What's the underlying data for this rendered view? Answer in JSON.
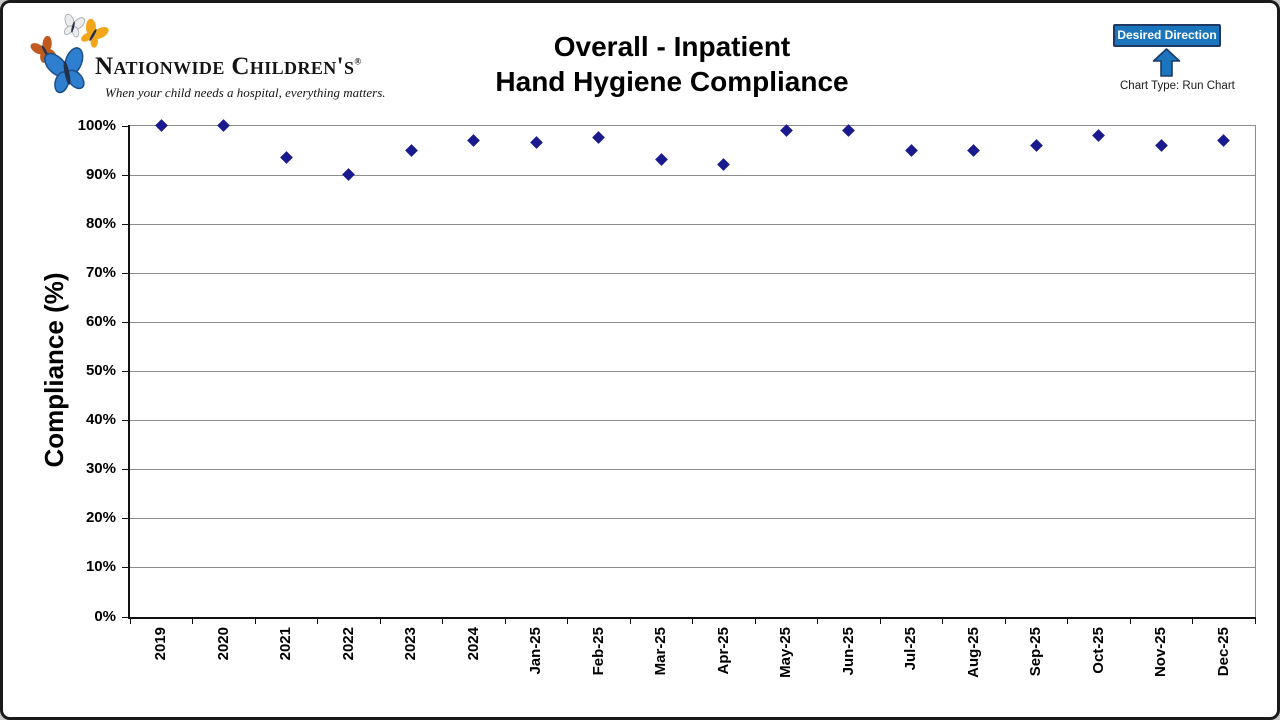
{
  "header": {
    "logo": {
      "name": "Nationwide Children's",
      "registered_mark": "®",
      "tagline": "When your child needs a hospital, everything matters.",
      "butterfly_colors": {
        "blue": "#2e7fd0",
        "blue_dark": "#1c4f86",
        "orange": "#c05a1e",
        "white": "#ededed",
        "white_edge": "#9aa4ad",
        "gold": "#f2a71b",
        "body": "#23324a"
      }
    },
    "title_line1": "Overall - Inpatient",
    "title_line2": "Hand Hygiene Compliance",
    "desired_direction": {
      "label": "Desired Direction",
      "badge_fill": "#1b75bc",
      "badge_border": "#1f3864",
      "arrow_direction": "up"
    },
    "chart_type_label": "Chart Type: Run Chart"
  },
  "chart_data": {
    "type": "scatter",
    "chart_style": "run chart, diamond markers only, no connecting line",
    "title": "Overall - Inpatient Hand Hygiene Compliance",
    "xlabel": "",
    "ylabel": "Compliance (%)",
    "ylim": [
      0,
      100
    ],
    "ytick_step": 10,
    "ytick_labels": [
      "0%",
      "10%",
      "20%",
      "30%",
      "40%",
      "50%",
      "60%",
      "70%",
      "80%",
      "90%",
      "100%"
    ],
    "categories": [
      "2019",
      "2020",
      "2021",
      "2022",
      "2023",
      "2024",
      "Jan-25",
      "Feb-25",
      "Mar-25",
      "Apr-25",
      "May-25",
      "Jun-25",
      "Jul-25",
      "Aug-25",
      "Sep-25",
      "Oct-25",
      "Nov-25",
      "Dec-25"
    ],
    "values": [
      100,
      100,
      93.5,
      90,
      95,
      97,
      96.5,
      97.5,
      93,
      92,
      99,
      99,
      95,
      95,
      96,
      98,
      96,
      97
    ],
    "marker": "diamond",
    "marker_color": "#1a1a8f",
    "gridlines": "horizontal",
    "gridline_color": "#8c8c8c",
    "legend": "none"
  }
}
